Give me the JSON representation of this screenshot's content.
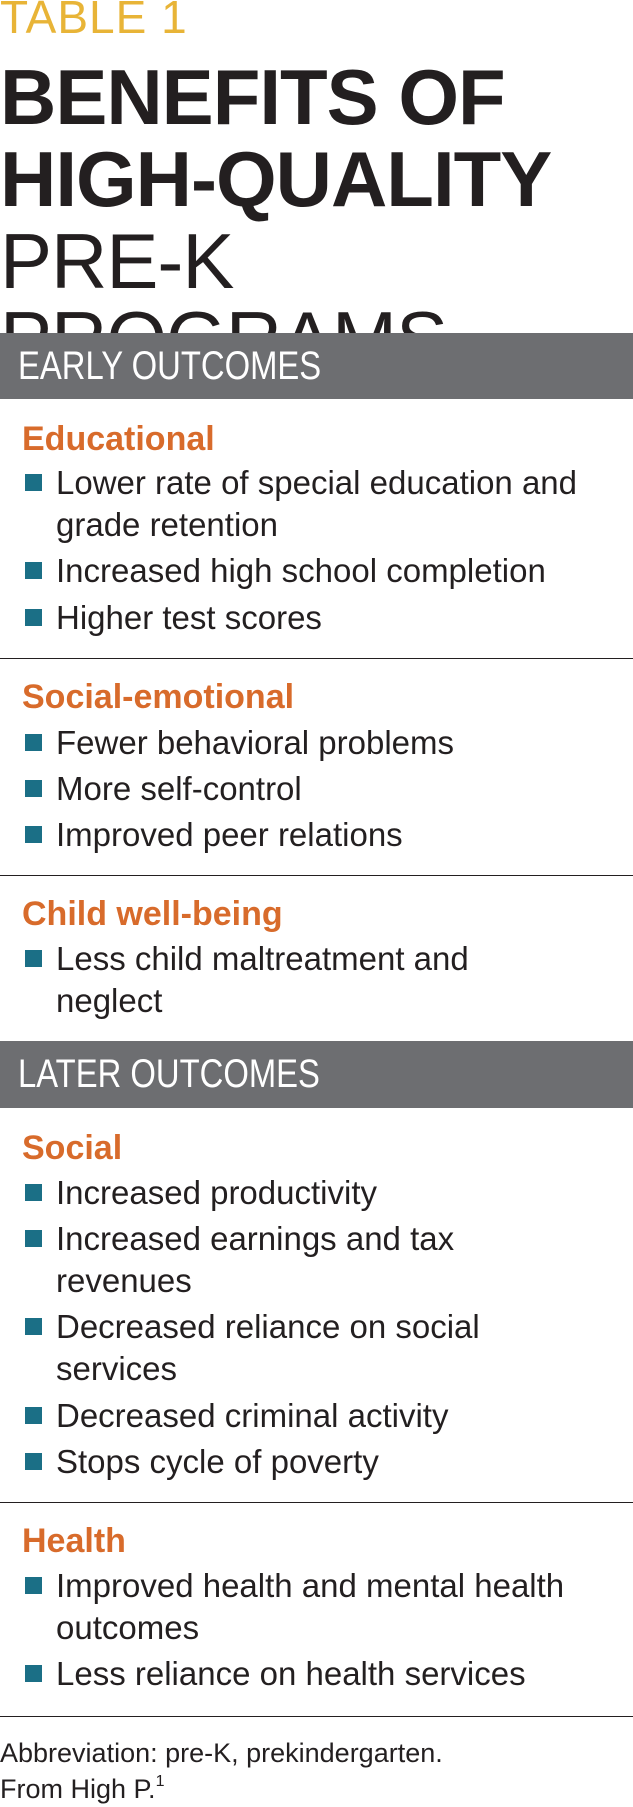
{
  "table_label": "TABLE 1",
  "title": {
    "line1": "BENEFITS OF",
    "line2": "HIGH-QUALITY",
    "line3": "PRE-K PROGRAMS"
  },
  "sections": [
    {
      "heading": "EARLY OUTCOMES",
      "categories": [
        {
          "name": "Educational",
          "items": [
            [
              "Lower rate of special education and",
              "grade retention"
            ],
            [
              "Increased high school completion"
            ],
            [
              "Higher test scores"
            ]
          ]
        },
        {
          "name": "Social-emotional",
          "items": [
            [
              "Fewer behavioral problems"
            ],
            [
              "More self-control"
            ],
            [
              "Improved peer relations"
            ]
          ]
        },
        {
          "name": "Child well-being",
          "items": [
            [
              "Less child maltreatment and",
              "neglect"
            ]
          ]
        }
      ]
    },
    {
      "heading": "LATER OUTCOMES",
      "categories": [
        {
          "name": "Social",
          "items": [
            [
              "Increased productivity"
            ],
            [
              "Increased earnings and tax",
              "revenues"
            ],
            [
              "Decreased reliance on social",
              "services"
            ],
            [
              "Decreased criminal activity"
            ],
            [
              "Stops cycle of poverty"
            ]
          ]
        },
        {
          "name": "Health",
          "items": [
            [
              "Improved health and mental health",
              "outcomes"
            ],
            [
              "Less reliance on health services"
            ]
          ]
        }
      ]
    }
  ],
  "footnotes": {
    "abbreviation": "Abbreviation: pre-K, prekindergarten.",
    "source": "From High P.",
    "source_ref": "1"
  },
  "colors": {
    "table_label": "#e8b437",
    "section_bar": "#6d6e71",
    "category": "#d86b2b",
    "bullet": "#1b6f86"
  }
}
